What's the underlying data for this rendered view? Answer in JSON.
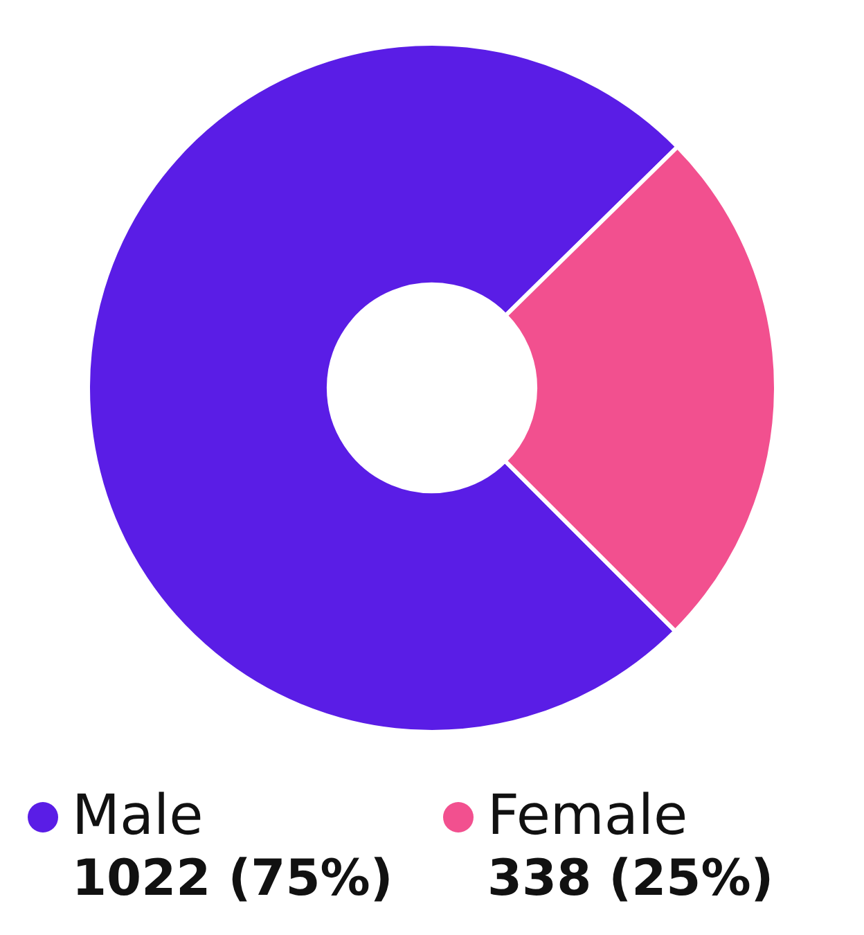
{
  "chart_data": {
    "type": "donut",
    "categories": [
      "Male",
      "Female"
    ],
    "values": [
      1022,
      338
    ],
    "colors": [
      "#5a1de6",
      "#f2508f"
    ],
    "value_labels": [
      "1022 (75%)",
      "338 (25%)"
    ],
    "legend": "bottom"
  }
}
